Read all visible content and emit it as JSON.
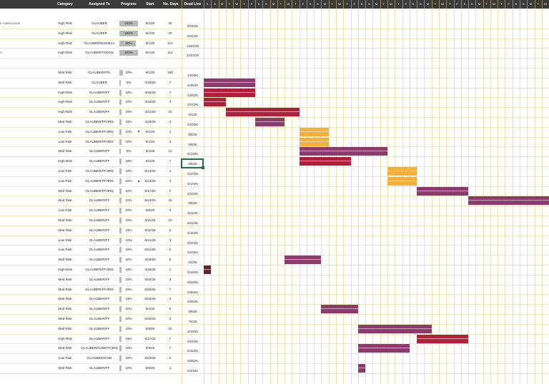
{
  "header": {
    "category": "Category",
    "assigned_to": "Assigned To",
    "progress": "Progress",
    "start": "Start",
    "no_days": "No. Days",
    "deadline": "Dead Line",
    "days": [
      "S",
      "S",
      "M",
      "T",
      "W",
      "T",
      "F",
      "S",
      "S",
      "M",
      "T",
      "W",
      "T",
      "F",
      "S",
      "S",
      "M",
      "T",
      "W",
      "T",
      "F",
      "S",
      "S",
      "M",
      "T",
      "W",
      "T",
      "F",
      "S",
      "S",
      "M",
      "T",
      "W",
      "T",
      "F",
      "S",
      "S",
      "M",
      "T",
      "W",
      "T",
      "F",
      "S",
      "S",
      "M",
      "T",
      "W",
      "T",
      "F"
    ]
  },
  "colors": {
    "header_bg": "#3a3a3a",
    "med_risk": "#8b3a6e",
    "high_risk": "#b01f3c",
    "low_risk": "#f3b03c",
    "done": "#5a2a2a",
    "selection": "#217346",
    "gridline": "#d9cf6a"
  },
  "tasks": [
    {
      "task": "E VIABILIDADE",
      "category": "High Risk",
      "assigned": "GLAUBER",
      "progress": "100%",
      "progress_frac": 1.0,
      "start": "8/1/25",
      "days": "30",
      "deadline": "8/31/25"
    },
    {
      "task": "",
      "category": "High Risk",
      "assigned": "GLAUBER",
      "progress": "100%",
      "progress_frac": 1.0,
      "start": "8/1/25",
      "days": "30",
      "deadline": "8/31/25"
    },
    {
      "task": "",
      "category": "High Risk",
      "assigned": "GLAUBER/DANIELA",
      "progress": "90%",
      "progress_frac": 0.9,
      "start": "9/1/25",
      "days": "112",
      "deadline": "12/22/25"
    },
    {
      "task": "S",
      "category": "High Risk",
      "assigned": "GLAUBER/TODOS",
      "progress": "100%",
      "progress_frac": 1.0,
      "start": "9/1/25",
      "days": "112",
      "deadline": "12/22/25"
    },
    {
      "task": "",
      "category": "",
      "assigned": "",
      "progress": "",
      "progress_frac": 0,
      "start": "",
      "days": "",
      "deadline": ""
    },
    {
      "task": "",
      "category": "Med Risk",
      "assigned": "GLAUBER/FPL",
      "progress": "20%",
      "progress_frac": 0.2,
      "start": "9/1/25",
      "days": "150",
      "deadline": "1/29/26"
    },
    {
      "task": "",
      "category": "Med Risk",
      "assigned": "GLAUBER",
      "progress": "0%",
      "progress_frac": 0,
      "start": "4/18/26",
      "days": "7",
      "deadline": "4/25/26"
    },
    {
      "task": "",
      "category": "High Risk",
      "assigned": "GLAUBER/FF",
      "progress": "10%",
      "progress_frac": 0.1,
      "start": "4/18/26",
      "days": "7",
      "deadline": "4/25/26"
    },
    {
      "task": "",
      "category": "High Risk",
      "assigned": "GLAUBER/FF",
      "progress": "10%",
      "progress_frac": 0.1,
      "start": "4/18/26",
      "days": "3",
      "deadline": "4/21/26"
    },
    {
      "task": "",
      "category": "High Risk",
      "assigned": "GLAUBER/FF",
      "progress": "10%",
      "progress_frac": 0.1,
      "start": "4/21/26",
      "days": "10",
      "deadline": "5/1/26"
    },
    {
      "task": "",
      "category": "Med Risk",
      "assigned": "GLAUBER/FF/3RD",
      "progress": "10%",
      "progress_frac": 0.1,
      "start": "4/25/26",
      "days": "4",
      "deadline": "4/29/26"
    },
    {
      "task": "",
      "category": "Low Risk",
      "assigned": "GLAUBER/FF/3RD",
      "progress": "10%",
      "progress_frac": 0.1,
      "start": "5/1/26",
      "days": "4",
      "deadline": "5/5/26"
    },
    {
      "task": "",
      "category": "Low Risk",
      "assigned": "GLAUBER/FF/3RD",
      "progress": "10%",
      "progress_frac": 0.1,
      "start": "5/1/26",
      "days": "4",
      "deadline": "5/5/26"
    },
    {
      "task": "",
      "category": "Med Risk",
      "assigned": "GLAUBER/FF",
      "progress": "0%",
      "progress_frac": 0,
      "start": "5/1/26",
      "days": "12",
      "deadline": "5/13/26"
    },
    {
      "task": "",
      "category": "High Risk",
      "assigned": "GLAUBER/FF",
      "progress": "10%",
      "progress_frac": 0.1,
      "start": "5/1/26",
      "days": "7",
      "deadline": "5/8/26"
    },
    {
      "task": "",
      "category": "Low Risk",
      "assigned": "GLAUBER/FF/3RD",
      "progress": "10%",
      "progress_frac": 0.1,
      "start": "5/13/26",
      "days": "4",
      "deadline": "5/17/26"
    },
    {
      "task": "",
      "category": "Low Risk",
      "assigned": "GLAUBER/FF/3RD",
      "progress": "10%",
      "progress_frac": 0.1,
      "start": "5/13/26",
      "days": "4",
      "deadline": "5/17/26"
    },
    {
      "task": "",
      "category": "Med Risk",
      "assigned": "GLAUBER/FF/3RD",
      "progress": "10%",
      "progress_frac": 0.1,
      "start": "5/17/26",
      "days": "7",
      "deadline": "5/24/26"
    },
    {
      "task": "",
      "category": "Med Risk",
      "assigned": "GLAUBER/FF",
      "progress": "10%",
      "progress_frac": 0.1,
      "start": "5/24/26",
      "days": "15",
      "deadline": "6/8/26"
    },
    {
      "task": "",
      "category": "Low Risk",
      "assigned": "GLAUBER/FF",
      "progress": "10%",
      "progress_frac": 0.1,
      "start": "6/8/26",
      "days": "3",
      "deadline": "6/11/26"
    },
    {
      "task": "",
      "category": "Med Risk",
      "assigned": "GLAUBER/FF",
      "progress": "10%",
      "progress_frac": 0.1,
      "start": "6/11/26",
      "days": "10",
      "deadline": "6/21/26"
    },
    {
      "task": "",
      "category": "Med Risk",
      "assigned": "GLAUBER/FF",
      "progress": "10%",
      "progress_frac": 0.1,
      "start": "6/11/26",
      "days": "5",
      "deadline": "6/16/26"
    },
    {
      "task": "",
      "category": "Low Risk",
      "assigned": "GLAUBER/FF",
      "progress": "10%",
      "progress_frac": 0.1,
      "start": "6/21/26",
      "days": "3",
      "deadline": "6/24/26"
    },
    {
      "task": "",
      "category": "Low Risk",
      "assigned": "GLAUBER/FF",
      "progress": "10%",
      "progress_frac": 0.1,
      "start": "6/21/26",
      "days": "2",
      "deadline": "6/23/26"
    },
    {
      "task": "",
      "category": "Med Risk",
      "assigned": "GLAUBER/FF",
      "progress": "10%",
      "progress_frac": 0.1,
      "start": "4/29/26",
      "days": "5",
      "deadline": "5/4/26"
    },
    {
      "task": "",
      "category": "High Risk",
      "assigned": "GLAUBER/FF/3RD",
      "progress": "10%",
      "progress_frac": 0.1,
      "start": "4/18/26",
      "days": "1",
      "deadline": "4/19/26"
    },
    {
      "task": "",
      "category": "Med Risk",
      "assigned": "GLAUBER/FF",
      "progress": "10%",
      "progress_frac": 0.1,
      "start": "6/20/26",
      "days": "3",
      "deadline": "6/23/26"
    },
    {
      "task": "",
      "category": "Med Risk",
      "assigned": "GLAUBER/FF/3RD",
      "progress": "10%",
      "progress_frac": 0.1,
      "start": "6/23/26",
      "days": "7",
      "deadline": "6/30/26"
    },
    {
      "task": "",
      "category": "Med Risk",
      "assigned": "GLAUBER/FF",
      "progress": "10%",
      "progress_frac": 0.1,
      "start": "6/23/26",
      "days": "3",
      "deadline": "6/26/26"
    },
    {
      "task": "",
      "category": "Med Risk",
      "assigned": "GLAUBER/FF",
      "progress": "10%",
      "progress_frac": 0.1,
      "start": "5/4/26",
      "days": "5",
      "deadline": "5/9/26"
    },
    {
      "task": "",
      "category": "Med Risk",
      "assigned": "GLAUBER/FF",
      "progress": "10%",
      "progress_frac": 0.1,
      "start": "6/30/26",
      "days": "2",
      "deadline": "7/2/26"
    },
    {
      "task": "",
      "category": "Med Risk",
      "assigned": "GLAUBER/FF",
      "progress": "10%",
      "progress_frac": 0.1,
      "start": "5/9/26",
      "days": "10",
      "deadline": "5/19/26"
    },
    {
      "task": "",
      "category": "High Risk",
      "assigned": "GLAUBER/FF",
      "progress": "10%",
      "progress_frac": 0.1,
      "start": "5/17/26",
      "days": "7",
      "deadline": "5/24/26"
    },
    {
      "task": "",
      "category": "Med Risk",
      "assigned": "GLAUBER/GABI/FF/3RD",
      "progress": "10%",
      "progress_frac": 0.1,
      "start": "5/9/26",
      "days": "7",
      "deadline": "5/16/26"
    },
    {
      "task": "",
      "category": "Low Risk",
      "assigned": "GLAUBER/GABI",
      "progress": "10%",
      "progress_frac": 0.1,
      "start": "6/23/26",
      "days": "2",
      "deadline": "6/25/26"
    },
    {
      "task": "",
      "category": "Med Risk",
      "assigned": "GLAUBER/FF",
      "progress": "10%",
      "progress_frac": 0.1,
      "start": "5/9/26",
      "days": "1",
      "deadline": "5/10/26"
    }
  ]
}
